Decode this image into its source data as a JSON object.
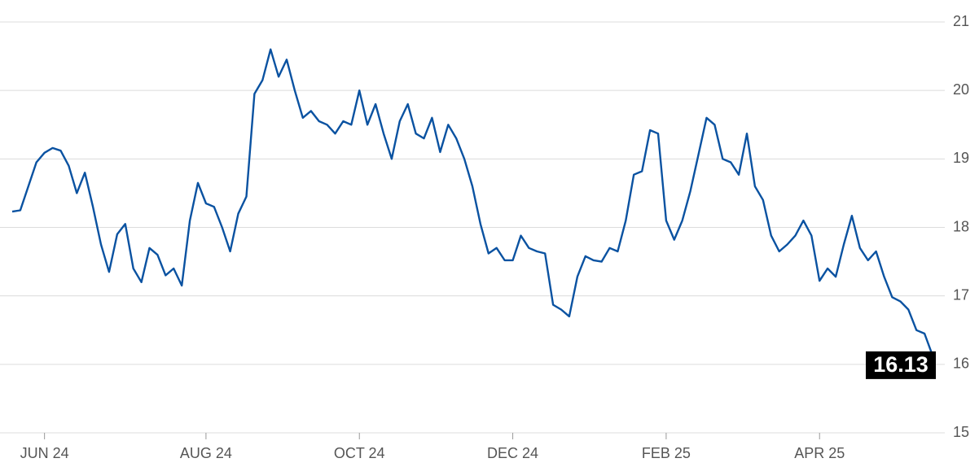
{
  "chart_data": {
    "type": "line",
    "categories": [
      null,
      null,
      null,
      null,
      "JUN 24",
      null,
      null,
      null,
      null,
      null,
      null,
      null,
      null,
      null,
      null,
      null,
      null,
      null,
      null,
      null,
      null,
      null,
      null,
      null,
      "AUG 24",
      null,
      null,
      null,
      null,
      null,
      null,
      null,
      null,
      null,
      null,
      null,
      null,
      null,
      null,
      null,
      null,
      null,
      null,
      "OCT 24",
      null,
      null,
      null,
      null,
      null,
      null,
      null,
      null,
      null,
      null,
      null,
      null,
      null,
      null,
      null,
      null,
      null,
      null,
      "DEC 24",
      null,
      null,
      null,
      null,
      null,
      null,
      null,
      null,
      null,
      null,
      null,
      null,
      null,
      null,
      null,
      null,
      null,
      null,
      "FEB 25",
      null,
      null,
      null,
      null,
      null,
      null,
      null,
      null,
      null,
      null,
      null,
      null,
      null,
      null,
      null,
      null,
      null,
      null,
      "APR 25",
      null,
      null,
      null,
      null,
      null,
      null,
      null,
      null,
      null,
      null,
      null,
      null,
      null,
      null
    ],
    "values": [
      18.23,
      18.25,
      18.6,
      18.95,
      19.09,
      19.16,
      19.12,
      18.9,
      18.5,
      18.8,
      18.3,
      17.75,
      17.35,
      17.9,
      18.05,
      17.4,
      17.2,
      17.7,
      17.6,
      17.3,
      17.4,
      17.15,
      18.1,
      18.65,
      18.35,
      18.3,
      18.0,
      17.65,
      18.2,
      18.45,
      19.95,
      20.15,
      20.6,
      20.2,
      20.45,
      20.0,
      19.6,
      19.7,
      19.55,
      19.5,
      19.37,
      19.55,
      19.5,
      20.0,
      19.5,
      19.8,
      19.37,
      19.0,
      19.55,
      19.8,
      19.37,
      19.3,
      19.6,
      19.1,
      19.5,
      19.3,
      19.0,
      18.6,
      18.05,
      17.62,
      17.7,
      17.52,
      17.52,
      17.88,
      17.7,
      17.65,
      17.62,
      16.87,
      16.8,
      16.7,
      17.28,
      17.58,
      17.52,
      17.5,
      17.7,
      17.65,
      18.1,
      18.77,
      18.82,
      19.42,
      19.37,
      18.1,
      17.82,
      18.1,
      18.53,
      19.06,
      19.6,
      19.5,
      19.0,
      18.95,
      18.77,
      19.37,
      18.6,
      18.4,
      17.88,
      17.65,
      17.75,
      17.88,
      18.1,
      17.88,
      17.22,
      17.4,
      17.28,
      17.75,
      18.17,
      17.7,
      17.52,
      17.65,
      17.28,
      16.98,
      16.92,
      16.8,
      16.5,
      16.45,
      16.13
    ],
    "color": "#0a52a1",
    "ylim": [
      15,
      21
    ],
    "yticks": [
      15,
      16,
      17,
      18,
      19,
      20,
      21
    ],
    "grid": true
  }
}
